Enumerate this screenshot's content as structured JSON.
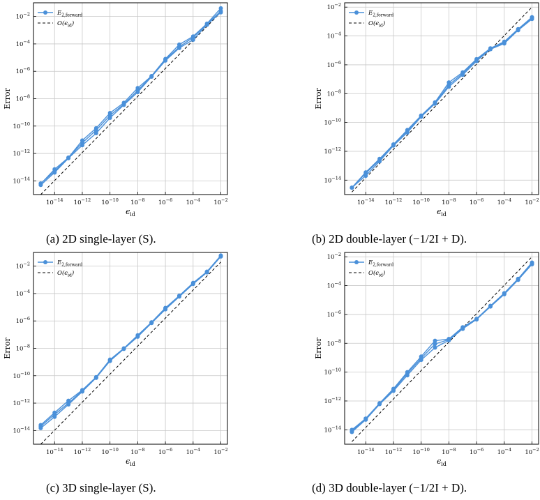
{
  "chart_data": [
    {
      "type": "line",
      "xscale": "log",
      "yscale": "log",
      "xlabel": "ϵid",
      "ylabel": "Error",
      "xlim": [
        3e-16,
        0.03
      ],
      "ylim": [
        1e-15,
        0.1
      ],
      "xticks": [
        1e-14,
        1e-12,
        1e-10,
        1e-08,
        1e-06,
        0.0001,
        0.01
      ],
      "xticklabels": [
        "10−14",
        "10−12",
        "10−10",
        "10−8",
        "10−6",
        "10−4",
        "10−2"
      ],
      "yticks": [
        1e-14,
        1e-12,
        1e-10,
        1e-08,
        1e-06,
        0.0001,
        0.01
      ],
      "yticklabels": [
        "10−14",
        "10−12",
        "10−10",
        "10−8",
        "10−6",
        "10−4",
        "10−2"
      ],
      "grid": true,
      "legend": "top-left",
      "legend_entries": [
        "E2,forward",
        "O(ϵid)"
      ],
      "caption": "(a) 2D single-layer (S).",
      "reference": {
        "name": "O(ϵid)",
        "x": [
          1e-15,
          0.01
        ],
        "y": [
          1e-15,
          0.02
        ]
      },
      "series": [
        {
          "x": [
            1e-15,
            1e-14,
            1e-13,
            1e-12,
            1e-11,
            1e-10,
            1e-09,
            1e-08,
            1e-07,
            1e-06,
            1e-05,
            0.0001,
            0.001,
            0.01
          ],
          "y": [
            6e-15,
            7e-14,
            5e-13,
            9e-12,
            7e-11,
            9e-10,
            5e-09,
            6e-08,
            4.5e-07,
            8e-06,
            9e-05,
            0.00035,
            0.003,
            0.04
          ]
        },
        {
          "x": [
            1e-15,
            1e-14,
            1e-13,
            1e-12,
            1e-11,
            1e-10,
            1e-09,
            1e-08,
            1e-07,
            1e-06,
            1e-05,
            0.0001,
            0.001,
            0.01
          ],
          "y": [
            5e-15,
            4e-14,
            4.5e-13,
            4e-12,
            3e-11,
            4e-10,
            3.5e-09,
            3e-08,
            4e-07,
            6e-06,
            5e-05,
            0.0002,
            0.0025,
            0.02
          ]
        },
        {
          "x": [
            1e-15,
            1e-14,
            1e-13,
            1e-12,
            1e-11,
            1e-10,
            1e-09,
            1e-08,
            1e-07,
            1e-06,
            1e-05,
            0.0001,
            0.001,
            0.01
          ],
          "y": [
            6.5e-15,
            5e-14,
            5e-13,
            6e-12,
            5e-11,
            6e-10,
            4e-09,
            4e-08,
            4.3e-07,
            7e-06,
            6e-05,
            0.0003,
            0.0028,
            0.025
          ]
        }
      ]
    },
    {
      "type": "line",
      "xscale": "log",
      "yscale": "log",
      "xlabel": "ϵid",
      "ylabel": "Error",
      "xlim": [
        3e-16,
        0.03
      ],
      "ylim": [
        1e-15,
        0.02
      ],
      "xticks": [
        1e-14,
        1e-12,
        1e-10,
        1e-08,
        1e-06,
        0.0001,
        0.01
      ],
      "xticklabels": [
        "10−14",
        "10−12",
        "10−10",
        "10−8",
        "10−6",
        "10−4",
        "10−2"
      ],
      "yticks": [
        1e-14,
        1e-12,
        1e-10,
        1e-08,
        1e-06,
        0.0001,
        0.01
      ],
      "yticklabels": [
        "10−14",
        "10−12",
        "10−10",
        "10−8",
        "10−6",
        "10−4",
        "10−2"
      ],
      "grid": true,
      "legend": "top-left",
      "legend_entries": [
        "E2,forward",
        "O(ϵid)"
      ],
      "caption": "(b) 2D double-layer (−1/2I + D).",
      "reference": {
        "name": "O(ϵid)",
        "x": [
          1e-15,
          0.01
        ],
        "y": [
          1.5e-15,
          0.01
        ]
      },
      "series": [
        {
          "x": [
            1e-15,
            1e-14,
            1e-13,
            1e-12,
            1e-11,
            1e-10,
            1e-09,
            1e-08,
            1e-07,
            1e-06,
            1e-05,
            0.0001,
            0.001,
            0.01
          ],
          "y": [
            3e-15,
            3.5e-14,
            3e-13,
            3e-12,
            3e-11,
            3e-10,
            2.5e-09,
            6e-08,
            3e-07,
            2.5e-06,
            1.4e-05,
            4e-05,
            0.0003,
            0.002
          ]
        },
        {
          "x": [
            1e-15,
            1e-14,
            1e-13,
            1e-12,
            1e-11,
            1e-10,
            1e-09,
            1e-08,
            1e-07,
            1e-06,
            1e-05,
            0.0001,
            0.001,
            0.01
          ],
          "y": [
            3e-15,
            2e-14,
            2e-13,
            2.5e-12,
            2e-11,
            2.5e-10,
            2e-09,
            3e-08,
            2e-07,
            1.8e-06,
            1.2e-05,
            3e-05,
            0.00025,
            0.0015
          ]
        },
        {
          "x": [
            1e-15,
            1e-14,
            1e-13,
            1e-12,
            1e-11,
            1e-10,
            1e-09,
            1e-08,
            1e-07,
            1e-06,
            1e-05,
            0.0001,
            0.001,
            0.01
          ],
          "y": [
            3e-15,
            3e-14,
            2.5e-13,
            3e-12,
            2.5e-11,
            3e-10,
            2.2e-09,
            4e-08,
            2.5e-07,
            2.2e-06,
            1.3e-05,
            3.5e-05,
            0.00028,
            0.0018
          ]
        }
      ]
    },
    {
      "type": "line",
      "xscale": "log",
      "yscale": "log",
      "xlabel": "ϵid",
      "ylabel": "Error",
      "xlim": [
        3e-16,
        0.03
      ],
      "ylim": [
        1e-15,
        0.1
      ],
      "xticks": [
        1e-14,
        1e-12,
        1e-10,
        1e-08,
        1e-06,
        0.0001,
        0.01
      ],
      "xticklabels": [
        "10−14",
        "10−12",
        "10−10",
        "10−8",
        "10−6",
        "10−4",
        "10−2"
      ],
      "yticks": [
        1e-14,
        1e-12,
        1e-10,
        1e-08,
        1e-06,
        0.0001,
        0.01
      ],
      "yticklabels": [
        "10−14",
        "10−12",
        "10−10",
        "10−8",
        "10−6",
        "10−4",
        "10−2"
      ],
      "grid": true,
      "legend": "top-left",
      "legend_entries": [
        "E2,forward",
        "O(ϵid)"
      ],
      "caption": "(c) 3D single-layer (S).",
      "reference": {
        "name": "O(ϵid)",
        "x": [
          1e-15,
          0.01
        ],
        "y": [
          1e-15,
          0.02
        ]
      },
      "series": [
        {
          "x": [
            1e-15,
            1e-14,
            1e-13,
            1e-12,
            1e-11,
            1e-10,
            1e-09,
            1e-08,
            1e-07,
            1e-06,
            1e-05,
            0.0001,
            0.001,
            0.01
          ],
          "y": [
            2.5e-14,
            2e-13,
            1.5e-12,
            9e-12,
            8e-11,
            1.5e-09,
            1e-08,
            9e-08,
            8e-07,
            9e-06,
            7e-05,
            0.0006,
            0.004,
            0.06
          ]
        },
        {
          "x": [
            1e-15,
            1e-14,
            1e-13,
            1e-12,
            1e-11,
            1e-10,
            1e-09,
            1e-08,
            1e-07,
            1e-06,
            1e-05,
            0.0001,
            0.001,
            0.01
          ],
          "y": [
            1.5e-14,
            1e-13,
            8e-13,
            7e-12,
            7e-11,
            1.2e-09,
            9e-09,
            7e-08,
            7e-07,
            7e-06,
            6e-05,
            0.0005,
            0.0035,
            0.05
          ]
        },
        {
          "x": [
            1e-15,
            1e-14,
            1e-13,
            1e-12,
            1e-11,
            1e-10,
            1e-09,
            1e-08,
            1e-07,
            1e-06,
            1e-05,
            0.0001,
            0.001,
            0.01
          ],
          "y": [
            2e-14,
            1.5e-13,
            1e-12,
            8e-12,
            7.5e-11,
            1.3e-09,
            9.5e-09,
            8e-08,
            7.5e-07,
            8e-06,
            6.5e-05,
            0.00055,
            0.0038,
            0.055
          ]
        }
      ]
    },
    {
      "type": "line",
      "xscale": "log",
      "yscale": "log",
      "xlabel": "ϵid",
      "ylabel": "Error",
      "xlim": [
        3e-16,
        0.03
      ],
      "ylim": [
        1e-15,
        0.02
      ],
      "xticks": [
        1e-14,
        1e-12,
        1e-10,
        1e-08,
        1e-06,
        0.0001,
        0.01
      ],
      "xticklabels": [
        "10−14",
        "10−12",
        "10−10",
        "10−8",
        "10−6",
        "10−4",
        "10−2"
      ],
      "yticks": [
        1e-14,
        1e-12,
        1e-10,
        1e-08,
        1e-06,
        0.0001,
        0.01
      ],
      "yticklabels": [
        "10−14",
        "10−12",
        "10−10",
        "10−8",
        "10−6",
        "10−4",
        "10−2"
      ],
      "grid": true,
      "legend": "top-left",
      "legend_entries": [
        "E2,forward",
        "O(ϵid)"
      ],
      "caption": "(d) 3D double-layer (−1/2I + D).",
      "reference": {
        "name": "O(ϵid)",
        "x": [
          1e-15,
          0.01
        ],
        "y": [
          1.5e-15,
          0.01
        ]
      },
      "series": [
        {
          "x": [
            1e-15,
            1e-14,
            1e-13,
            1e-12,
            1e-11,
            1e-10,
            1e-09,
            1e-08,
            1e-07,
            1e-06,
            1e-05,
            0.0001,
            0.001,
            0.01
          ],
          "y": [
            1e-14,
            6e-14,
            7e-13,
            7e-12,
            1e-10,
            1.2e-09,
            1.5e-08,
            2e-08,
            1.3e-07,
            5e-07,
            4e-06,
            3e-05,
            0.0003,
            0.004
          ]
        },
        {
          "x": [
            1e-15,
            1e-14,
            1e-13,
            1e-12,
            1e-11,
            1e-10,
            1e-09,
            1e-08,
            1e-07,
            1e-06,
            1e-05,
            0.0001,
            0.001,
            0.01
          ],
          "y": [
            7e-15,
            5e-14,
            6e-13,
            5e-12,
            6e-11,
            7e-10,
            5e-09,
            1.6e-08,
            1e-07,
            4.5e-07,
            3.5e-06,
            2.5e-05,
            0.00025,
            0.003
          ]
        },
        {
          "x": [
            1e-15,
            1e-14,
            1e-13,
            1e-12,
            1e-11,
            1e-10,
            1e-09,
            1e-08,
            1e-07,
            1e-06,
            1e-05,
            0.0001,
            0.001,
            0.01
          ],
          "y": [
            8e-15,
            6e-14,
            6.5e-13,
            6e-12,
            8e-11,
            9e-10,
            9e-09,
            1.8e-08,
            1.2e-07,
            4.8e-07,
            3.8e-06,
            2.8e-05,
            0.00028,
            0.0035
          ]
        }
      ]
    }
  ],
  "colors": {
    "series": "#4a90d9",
    "reference": "#000000",
    "grid": "#c8c8c8"
  }
}
